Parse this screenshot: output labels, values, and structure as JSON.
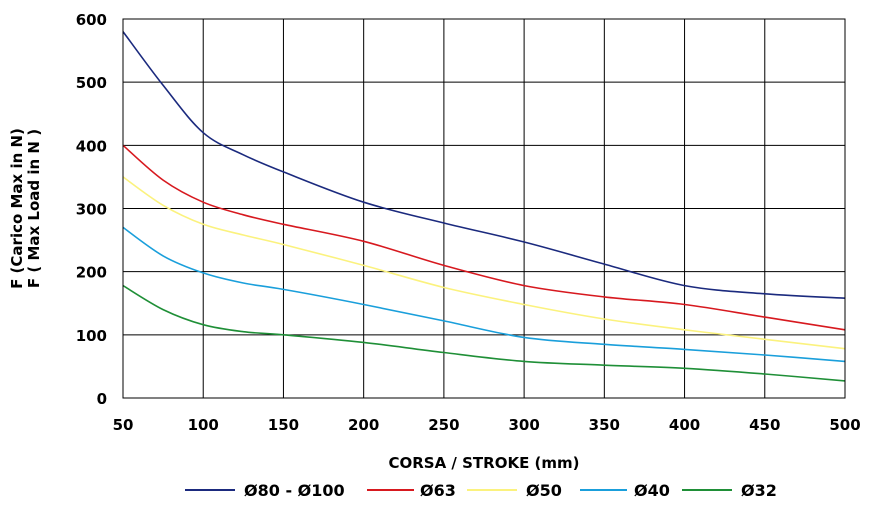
{
  "chart_data": {
    "type": "line",
    "title": "",
    "xlabel": "CORSA / STROKE (mm)",
    "ylabel_lines": [
      "F (Carico Max in N)",
      "F ( Max Load in N )"
    ],
    "xlim": [
      50,
      500
    ],
    "ylim": [
      0,
      600
    ],
    "x_ticks": [
      50,
      100,
      150,
      200,
      250,
      300,
      350,
      400,
      450,
      500
    ],
    "y_ticks": [
      0,
      100,
      200,
      300,
      400,
      500,
      600
    ],
    "grid": true,
    "legend_position": "bottom",
    "series": [
      {
        "name": "Ø80 - Ø100",
        "color": "#1b2a7e",
        "points": [
          [
            50,
            580
          ],
          [
            75,
            495
          ],
          [
            100,
            420
          ],
          [
            125,
            385
          ],
          [
            150,
            358
          ],
          [
            200,
            310
          ],
          [
            250,
            277
          ],
          [
            300,
            247
          ],
          [
            350,
            212
          ],
          [
            400,
            178
          ],
          [
            450,
            165
          ],
          [
            500,
            158
          ]
        ]
      },
      {
        "name": "Ø63",
        "color": "#d7191f",
        "points": [
          [
            50,
            400
          ],
          [
            75,
            345
          ],
          [
            100,
            310
          ],
          [
            125,
            290
          ],
          [
            150,
            275
          ],
          [
            200,
            248
          ],
          [
            250,
            210
          ],
          [
            300,
            178
          ],
          [
            350,
            160
          ],
          [
            400,
            148
          ],
          [
            450,
            128
          ],
          [
            500,
            108
          ]
        ]
      },
      {
        "name": "Ø50",
        "color": "#fbf27e",
        "points": [
          [
            50,
            350
          ],
          [
            75,
            305
          ],
          [
            100,
            275
          ],
          [
            125,
            258
          ],
          [
            150,
            243
          ],
          [
            200,
            210
          ],
          [
            250,
            175
          ],
          [
            300,
            148
          ],
          [
            350,
            125
          ],
          [
            400,
            108
          ],
          [
            450,
            93
          ],
          [
            500,
            78
          ]
        ]
      },
      {
        "name": "Ø40",
        "color": "#1a9fdb",
        "points": [
          [
            50,
            270
          ],
          [
            75,
            225
          ],
          [
            100,
            198
          ],
          [
            125,
            182
          ],
          [
            150,
            172
          ],
          [
            200,
            148
          ],
          [
            250,
            122
          ],
          [
            300,
            96
          ],
          [
            350,
            85
          ],
          [
            400,
            77
          ],
          [
            450,
            68
          ],
          [
            500,
            58
          ]
        ]
      },
      {
        "name": "Ø32",
        "color": "#1f8f37",
        "points": [
          [
            50,
            178
          ],
          [
            75,
            140
          ],
          [
            100,
            116
          ],
          [
            125,
            105
          ],
          [
            150,
            100
          ],
          [
            200,
            88
          ],
          [
            250,
            72
          ],
          [
            300,
            58
          ],
          [
            350,
            52
          ],
          [
            400,
            47
          ],
          [
            450,
            38
          ],
          [
            500,
            27
          ]
        ]
      }
    ]
  }
}
